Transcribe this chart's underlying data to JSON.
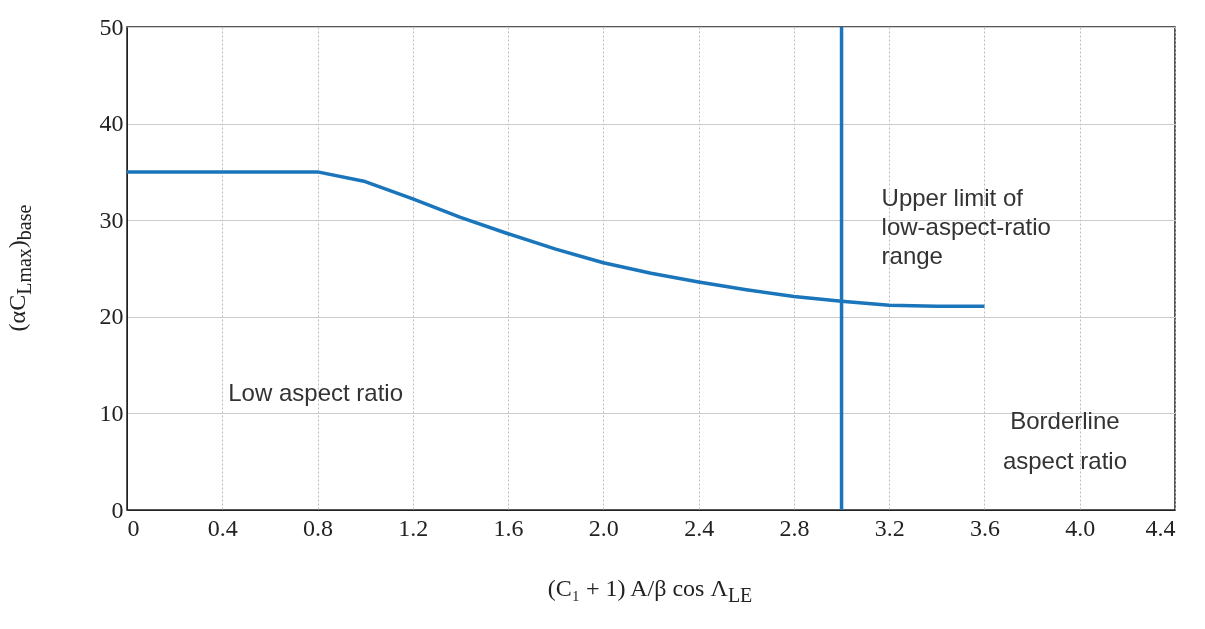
{
  "chart_data": {
    "type": "line",
    "xlabel": "(C₁ + 1) A/β cos Λ$_{LE}$",
    "ylabel": "(αC$_{Lmax}$)$_{base}$",
    "x": [
      0,
      0.4,
      0.8,
      1.0,
      1.2,
      1.4,
      1.6,
      1.8,
      2.0,
      2.2,
      2.4,
      2.6,
      2.8,
      3.0,
      3.2,
      3.4,
      3.6
    ],
    "series": [
      {
        "color": "#1a75bb",
        "values": [
          35,
          35,
          35,
          34,
          32.2,
          30.3,
          28.6,
          27,
          25.6,
          24.5,
          23.6,
          22.8,
          22.1,
          21.6,
          21.2,
          21.1,
          21.1
        ]
      }
    ],
    "xlim": [
      0,
      4.4
    ],
    "xticks": [
      0,
      0.4,
      0.8,
      1.2,
      1.6,
      "2.0",
      2.4,
      2.8,
      3.2,
      3.6,
      "4.0",
      4.4
    ],
    "ylim": [
      0,
      50
    ],
    "yticks": [
      0,
      10,
      20,
      30,
      40,
      50
    ],
    "grid": true,
    "legend": false,
    "marker": "none",
    "line_style": "solid",
    "ref_lines": [
      {
        "axis": "x",
        "value": 3.0,
        "label": "Upper limit of low-aspect-ratio range",
        "color": "#1a75bb"
      }
    ],
    "annotations": [
      "Low aspect ratio",
      "Borderline aspect ratio"
    ]
  }
}
